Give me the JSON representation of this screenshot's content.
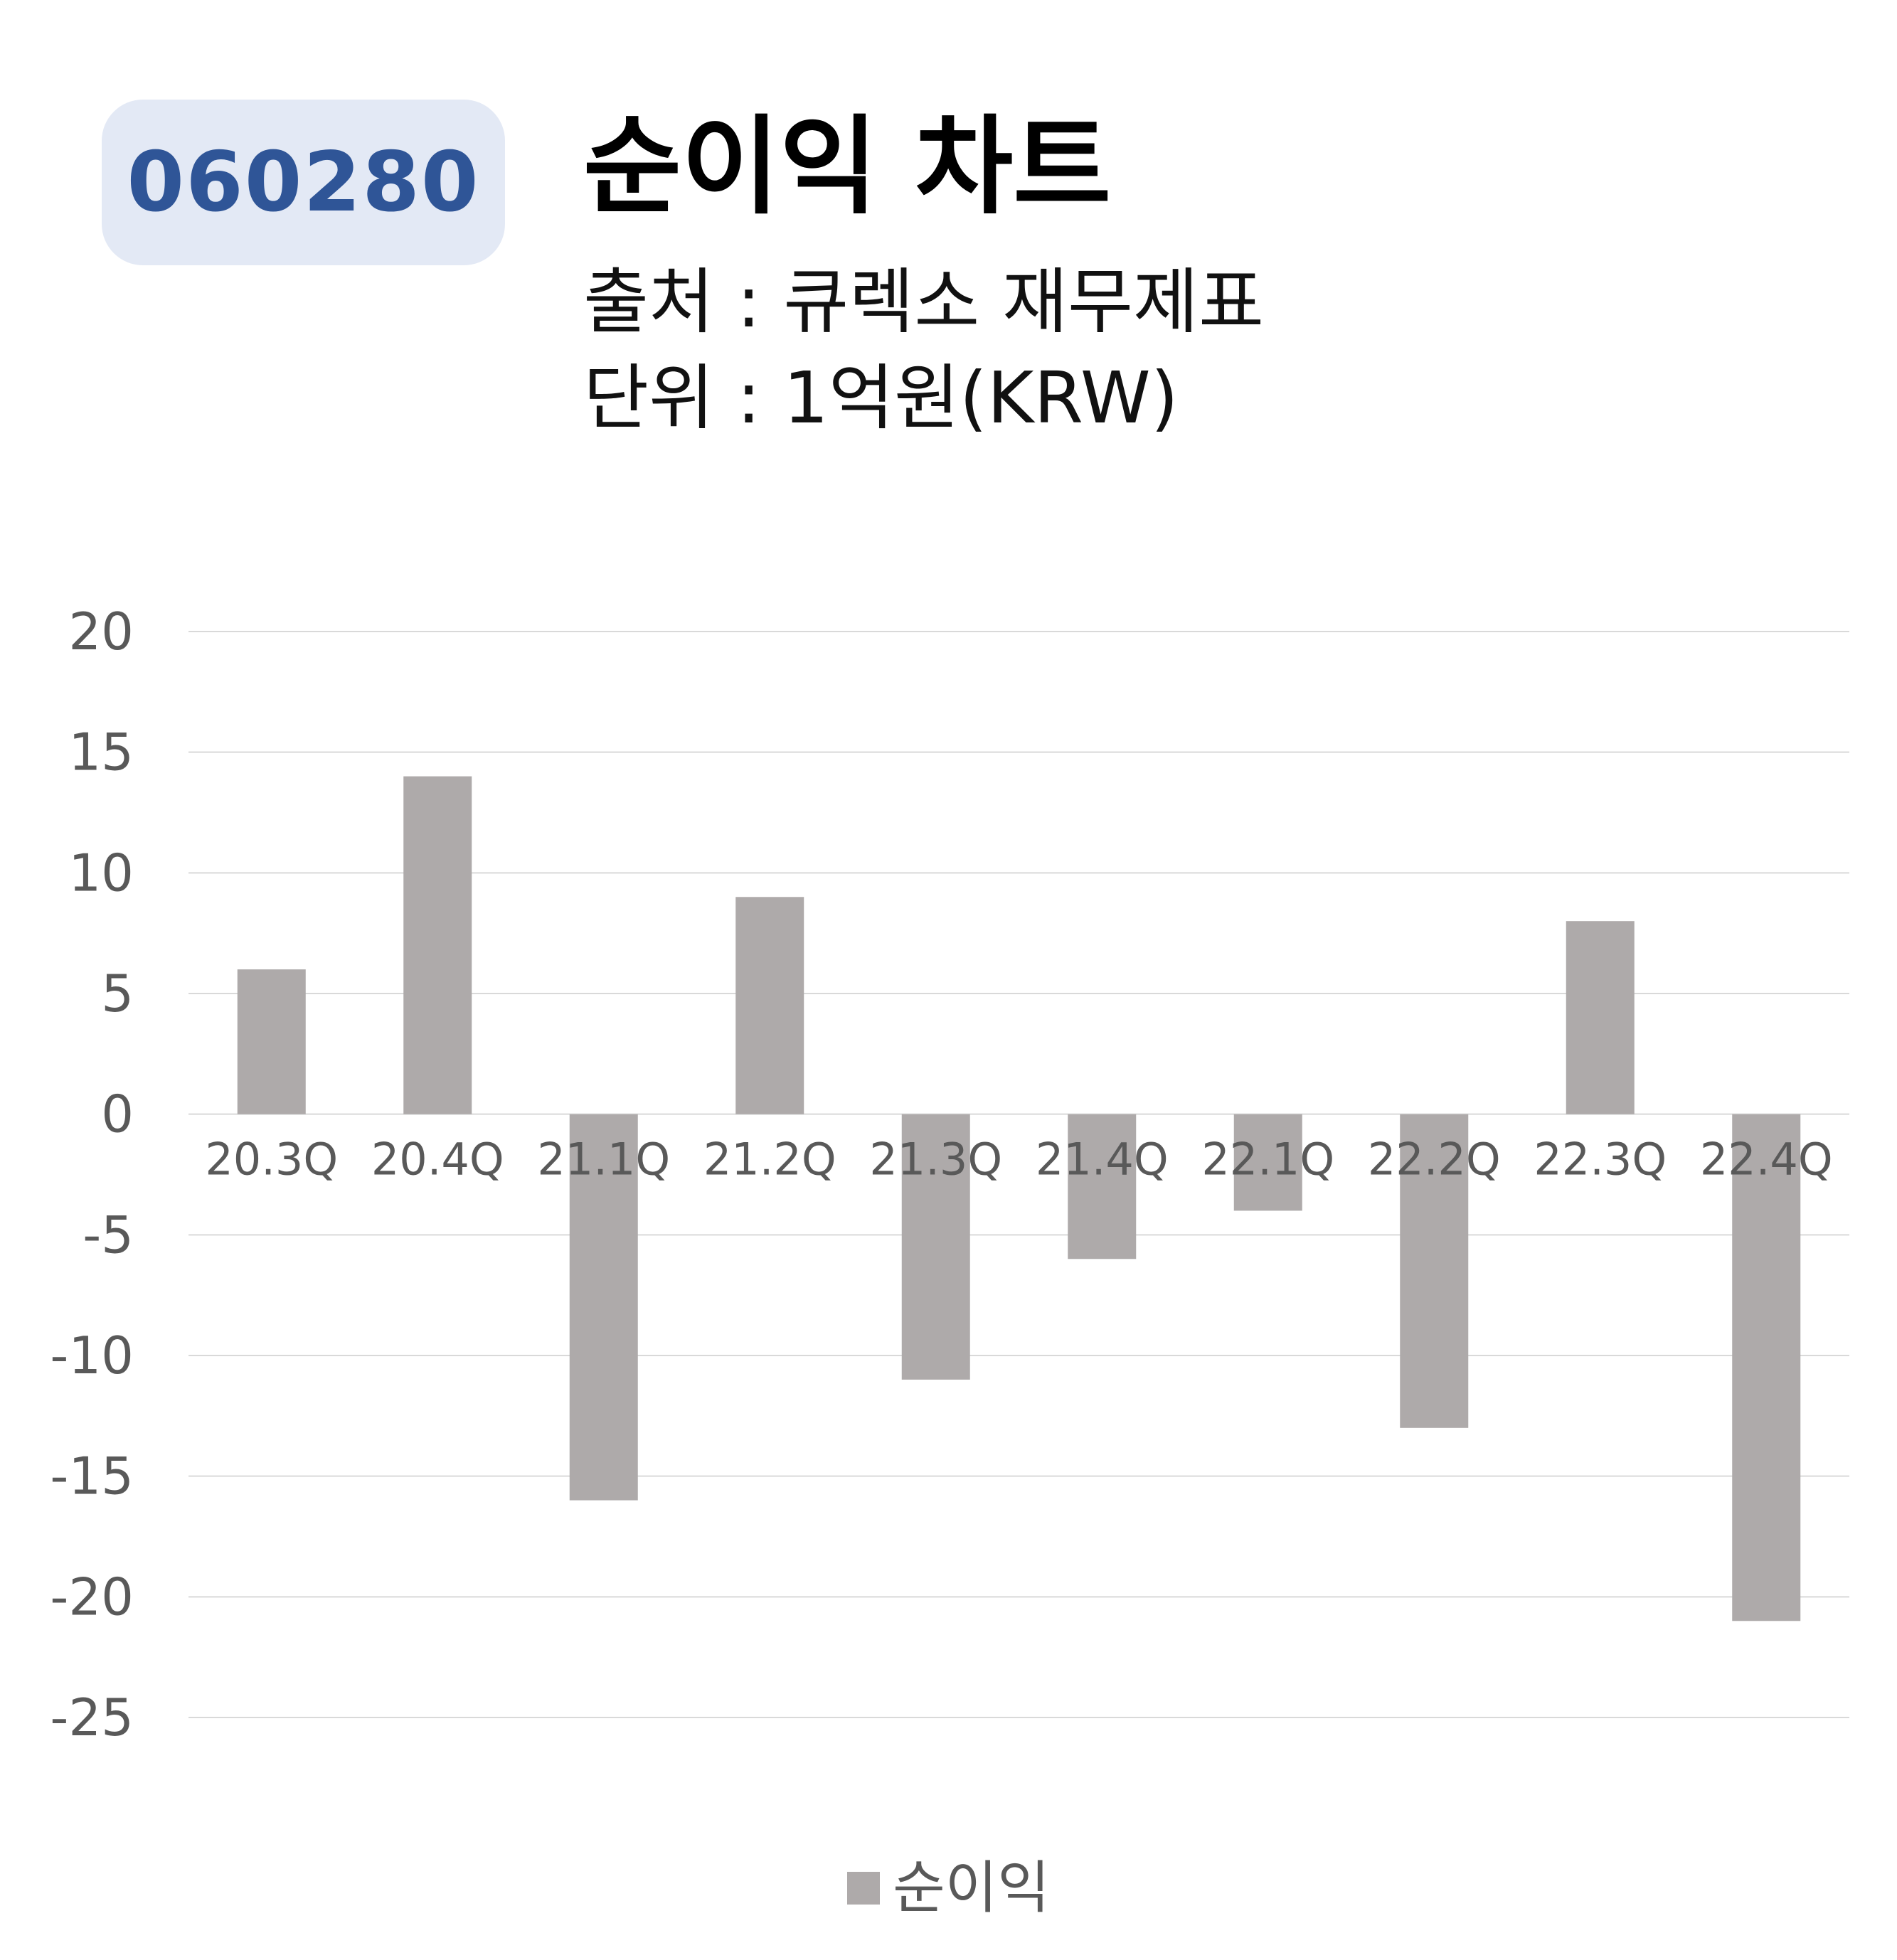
{
  "header": {
    "ticker": "060280",
    "title": "순이익 차트",
    "source": "출처 : 큐렉소 재무제표",
    "unit": "단위 : 1억원(KRW)"
  },
  "colors": {
    "badge_bg": "#e3e9f5",
    "badge_text": "#2f5597",
    "bar": "#aeaaaa",
    "grid": "#d9d9d9",
    "tick_text": "#595959"
  },
  "chart_data": {
    "type": "bar",
    "categories": [
      "20.3Q",
      "20.4Q",
      "21.1Q",
      "21.2Q",
      "21.3Q",
      "21.4Q",
      "22.1Q",
      "22.2Q",
      "22.3Q",
      "22.4Q"
    ],
    "series": [
      {
        "name": "순이익",
        "values": [
          6,
          14,
          -16,
          9,
          -11,
          -6,
          -4,
          -13,
          8,
          -21
        ]
      }
    ],
    "ylim": [
      -25,
      20
    ],
    "yticks": [
      20,
      15,
      10,
      5,
      0,
      -5,
      -10,
      -15,
      -20,
      -25
    ],
    "grid": true,
    "legend": "bottom"
  }
}
